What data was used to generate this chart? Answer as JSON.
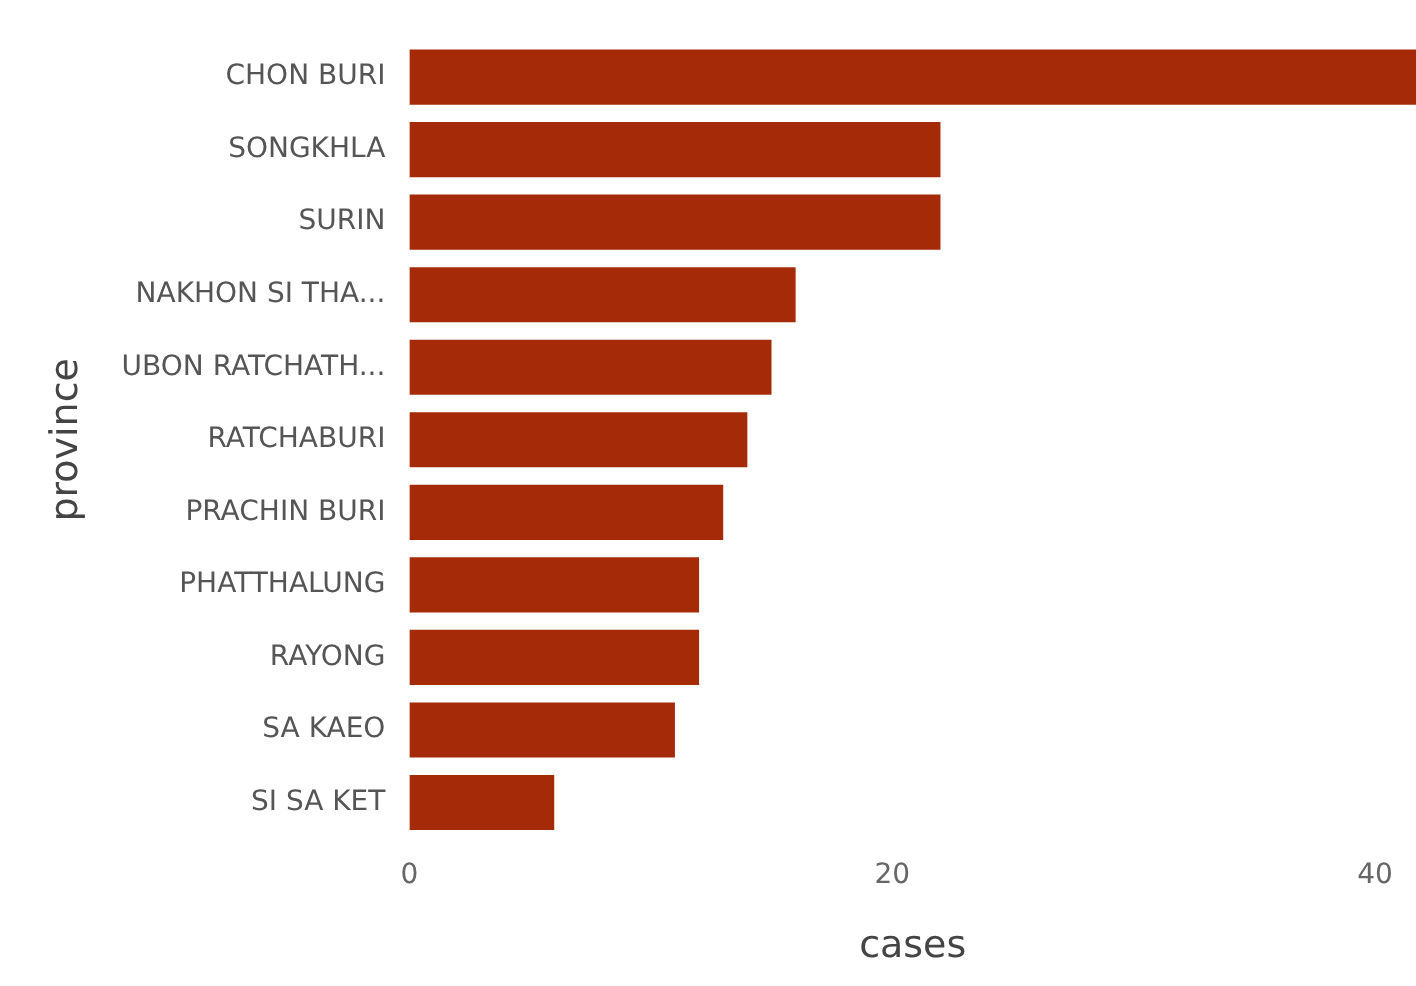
{
  "chart_data": {
    "type": "bar",
    "orientation": "horizontal",
    "xlabel": "cases",
    "ylabel": "province",
    "categories": [
      "CHON BURI",
      "SONGKHLA",
      "SURIN",
      "NAKHON SI THA...",
      "UBON RATCHATH...",
      "RATCHABURI",
      "PRACHIN BURI",
      "PHATTHALUNG",
      "RAYONG",
      "SA KAEO",
      "SI SA KET"
    ],
    "values": [
      41.7,
      22,
      22,
      16,
      15,
      14,
      13,
      12,
      12,
      11,
      6
    ],
    "color": "#a52a08",
    "xlim": [
      0,
      41.7
    ],
    "xticks": [
      0,
      20,
      40
    ],
    "grid": false,
    "legend": false
  }
}
